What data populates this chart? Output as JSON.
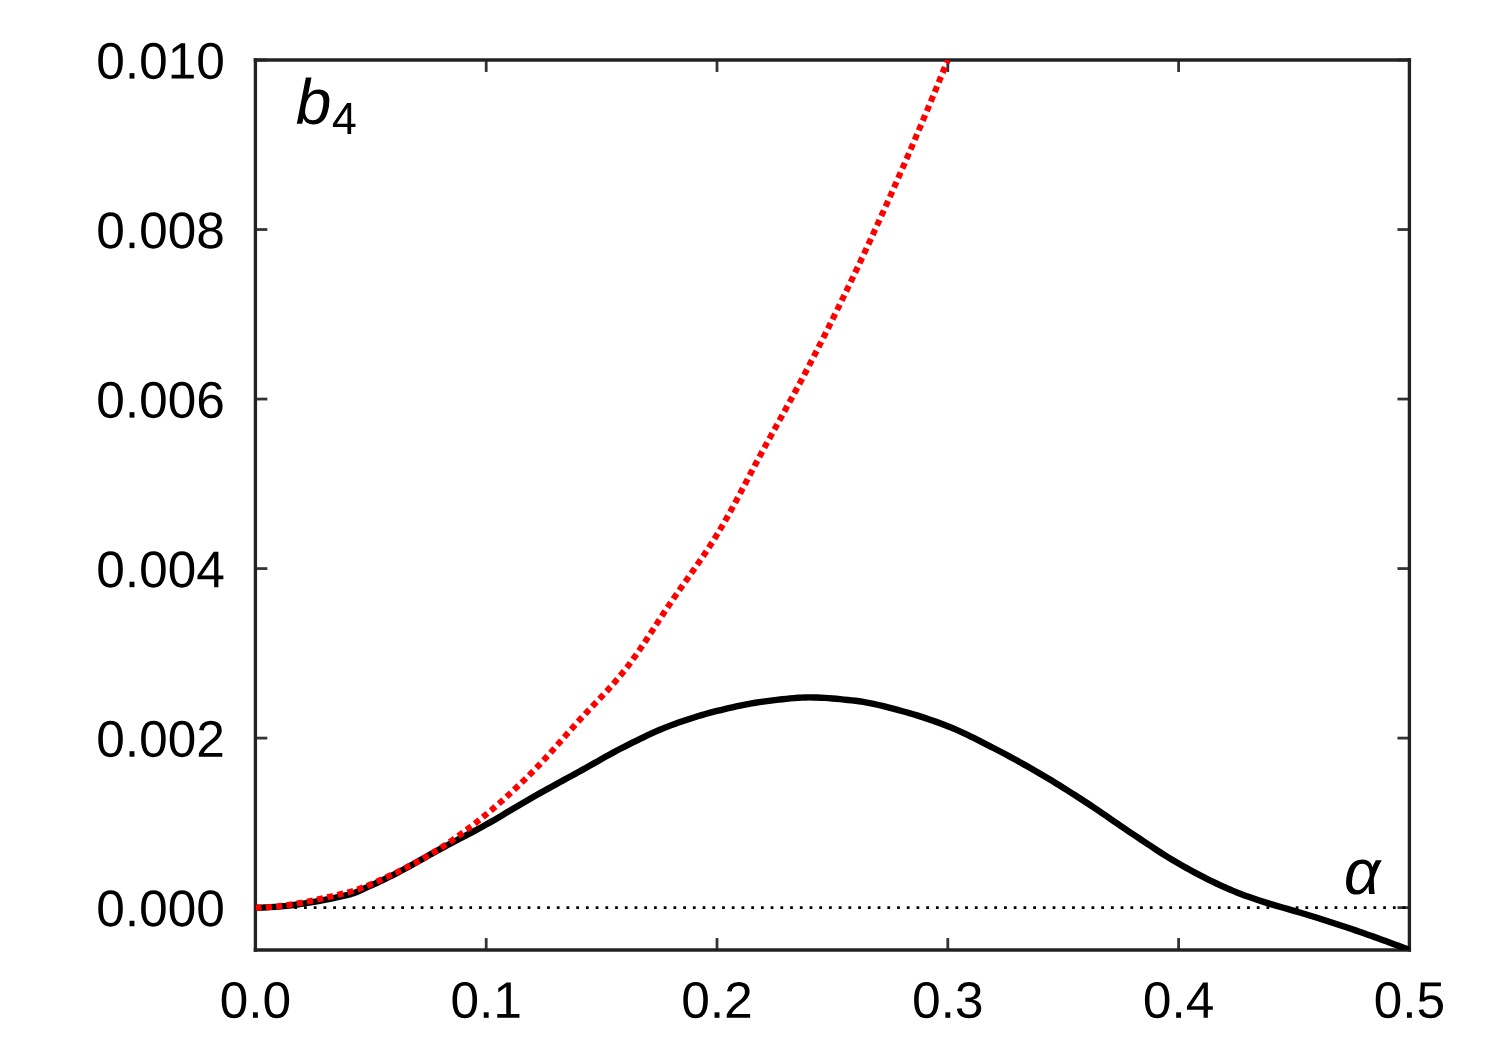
{
  "chart_data": {
    "type": "line",
    "xlabel": "α",
    "ylabel": "b$_{4}$",
    "x": [
      0,
      0.04,
      0.05,
      0.06,
      0.08,
      0.1,
      0.12,
      0.14,
      0.16,
      0.18,
      0.2,
      0.22,
      0.24,
      0.26,
      0.28,
      0.3,
      0.32,
      0.34,
      0.36,
      0.38,
      0.4,
      0.42,
      0.43,
      0.46,
      0.48,
      0.5
    ],
    "series": [
      {
        "color": "#000000",
        "line_style": "solid",
        "values": [
          0,
          0.00015,
          0.00026,
          0.00039,
          0.00069,
          0.00098,
          0.0013,
          0.0016,
          0.0019,
          0.00215,
          0.00232,
          0.00243,
          0.00248,
          0.00244,
          0.00232,
          0.00214,
          0.00188,
          0.00158,
          0.00124,
          0.00087,
          0.00052,
          0.00024,
          0.00013,
          -0.00012,
          -0.0003,
          -0.0005
        ]
      },
      {
        "color": "#ff0000",
        "line_style": "dotted",
        "x": [
          0,
          0.04,
          0.06,
          0.08,
          0.1,
          0.12,
          0.14,
          0.16,
          0.18,
          0.2,
          0.22,
          0.24,
          0.26,
          0.28,
          0.3
        ],
        "values": [
          0,
          0.00018,
          0.0004,
          0.0007,
          0.0011,
          0.0016,
          0.0022,
          0.0028,
          0.0036,
          0.0044,
          0.0054,
          0.0064,
          0.0075,
          0.0087,
          0.01
        ]
      }
    ],
    "xlim": [
      0,
      0.5
    ],
    "ylim": [
      -0.0005,
      0.01
    ],
    "xticks": [
      {
        "value": 0,
        "label": "0.0"
      },
      {
        "value": 0.1,
        "label": "0.1"
      },
      {
        "value": 0.2,
        "label": "0.2"
      },
      {
        "value": 0.3,
        "label": "0.3"
      },
      {
        "value": 0.4,
        "label": "0.4"
      },
      {
        "value": 0.5,
        "label": "0.5"
      }
    ],
    "yticks": [
      {
        "value": 0,
        "label": "0.000"
      },
      {
        "value": 0.002,
        "label": "0.002"
      },
      {
        "value": 0.004,
        "label": "0.004"
      },
      {
        "value": 0.006,
        "label": "0.006"
      },
      {
        "value": 0.008,
        "label": "0.008"
      },
      {
        "value": 0.01,
        "label": "0.010"
      }
    ],
    "ref_lines": [
      {
        "axis": "y",
        "value": 0,
        "color": "#000000",
        "line_style": "dotted"
      }
    ]
  }
}
